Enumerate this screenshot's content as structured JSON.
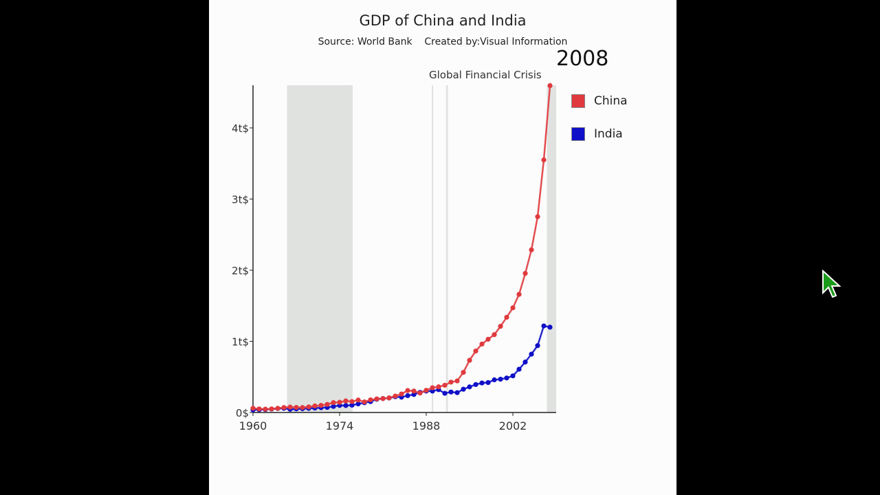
{
  "chart_data": {
    "type": "line",
    "title": "GDP of China and India",
    "subtitle": "Source: World Bank    Created by:Visual Information",
    "current_year": "2008",
    "annotation": "Global Financial Crisis",
    "xlim": [
      1960,
      2009
    ],
    "ylim": [
      0,
      4.6
    ],
    "x_ticks": [
      1960,
      1974,
      1988,
      2002
    ],
    "y_ticks": [
      {
        "value": 0,
        "label": "0$"
      },
      {
        "value": 1,
        "label": "1t$"
      },
      {
        "value": 2,
        "label": "2t$"
      },
      {
        "value": 3,
        "label": "3t$"
      },
      {
        "value": 4,
        "label": "4t$"
      }
    ],
    "grid": false,
    "legend_position": "right",
    "shaded_periods": [
      [
        1965.5,
        1976.1
      ],
      [
        1988.9,
        1989.1
      ],
      [
        1991.2,
        1991.5
      ],
      [
        2007.5,
        2009
      ]
    ],
    "x": [
      1960,
      1961,
      1962,
      1963,
      1964,
      1965,
      1966,
      1967,
      1968,
      1969,
      1970,
      1971,
      1972,
      1973,
      1974,
      1975,
      1976,
      1977,
      1978,
      1979,
      1980,
      1981,
      1982,
      1983,
      1984,
      1985,
      1986,
      1987,
      1988,
      1989,
      1990,
      1991,
      1992,
      1993,
      1994,
      1995,
      1996,
      1997,
      1998,
      1999,
      2000,
      2001,
      2002,
      2003,
      2004,
      2005,
      2006,
      2007,
      2008
    ],
    "series": [
      {
        "name": "China",
        "color": "#e03a3e",
        "values": [
          0.06,
          0.05,
          0.047,
          0.05,
          0.059,
          0.07,
          0.076,
          0.072,
          0.07,
          0.079,
          0.092,
          0.1,
          0.114,
          0.139,
          0.144,
          0.163,
          0.154,
          0.175,
          0.149,
          0.178,
          0.191,
          0.196,
          0.205,
          0.231,
          0.26,
          0.309,
          0.301,
          0.273,
          0.312,
          0.348,
          0.361,
          0.383,
          0.427,
          0.444,
          0.564,
          0.734,
          0.864,
          0.962,
          1.029,
          1.094,
          1.211,
          1.339,
          1.471,
          1.66,
          1.955,
          2.286,
          2.752,
          3.55,
          4.594
        ]
      },
      {
        "name": "India",
        "color": "#1010c8",
        "values": [
          0.037,
          0.039,
          0.042,
          0.048,
          0.056,
          0.059,
          0.045,
          0.05,
          0.053,
          0.058,
          0.062,
          0.067,
          0.071,
          0.085,
          0.099,
          0.098,
          0.103,
          0.121,
          0.137,
          0.153,
          0.186,
          0.196,
          0.204,
          0.222,
          0.215,
          0.237,
          0.253,
          0.283,
          0.301,
          0.301,
          0.321,
          0.27,
          0.288,
          0.279,
          0.327,
          0.36,
          0.393,
          0.415,
          0.421,
          0.459,
          0.468,
          0.485,
          0.515,
          0.608,
          0.709,
          0.82,
          0.94,
          1.217,
          1.199
        ]
      }
    ]
  },
  "cursor_icon": "mouse-pointer-icon"
}
